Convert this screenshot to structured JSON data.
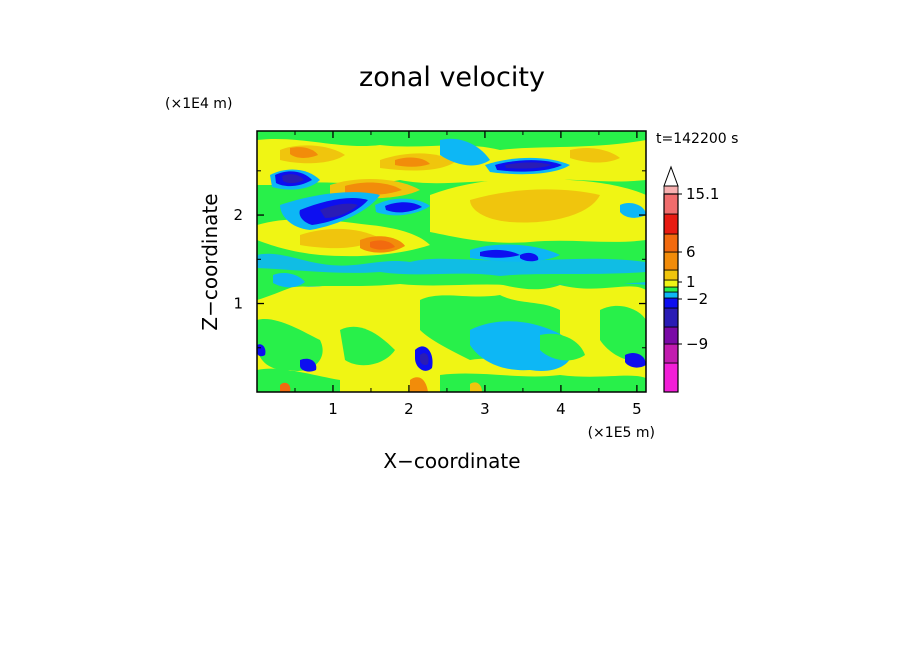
{
  "chart_data": {
    "type": "heatmap",
    "title": "zonal velocity",
    "xlabel": "X−coordinate",
    "ylabel": "Z−coordinate",
    "x_unit": "(×1E5 m)",
    "y_unit": "(×1E4 m)",
    "time_label": "t=142200 s",
    "x_ticks": [
      "1",
      "2",
      "3",
      "4",
      "5"
    ],
    "x_tick_values": [
      1,
      2,
      3,
      4,
      5
    ],
    "y_ticks": [
      "1",
      "2"
    ],
    "y_tick_values": [
      1,
      2
    ],
    "xlim": [
      0,
      5.12
    ],
    "ylim": [
      0,
      2.95
    ],
    "colorbar": {
      "colors": [
        "#f21fd7",
        "#c21caf",
        "#7a0aa6",
        "#2a1cb5",
        "#0d0ff0",
        "#0db7f5",
        "#28f04a",
        "#f0f514",
        "#f0c50d",
        "#f28c0a",
        "#f26a0f",
        "#e81b12",
        "#f06d6d",
        "#f7b0b0"
      ],
      "tick_labels": [
        "15.1",
        "6",
        "1",
        "−2",
        "−9"
      ],
      "tick_values": [
        15.1,
        6,
        1,
        -2,
        -9
      ],
      "extend": "max"
    },
    "field_description_levels": [
      "#0d0ff0",
      "#0db7f5",
      "#28f04a",
      "#f0f514",
      "#f0c50d",
      "#f28c0a"
    ]
  }
}
